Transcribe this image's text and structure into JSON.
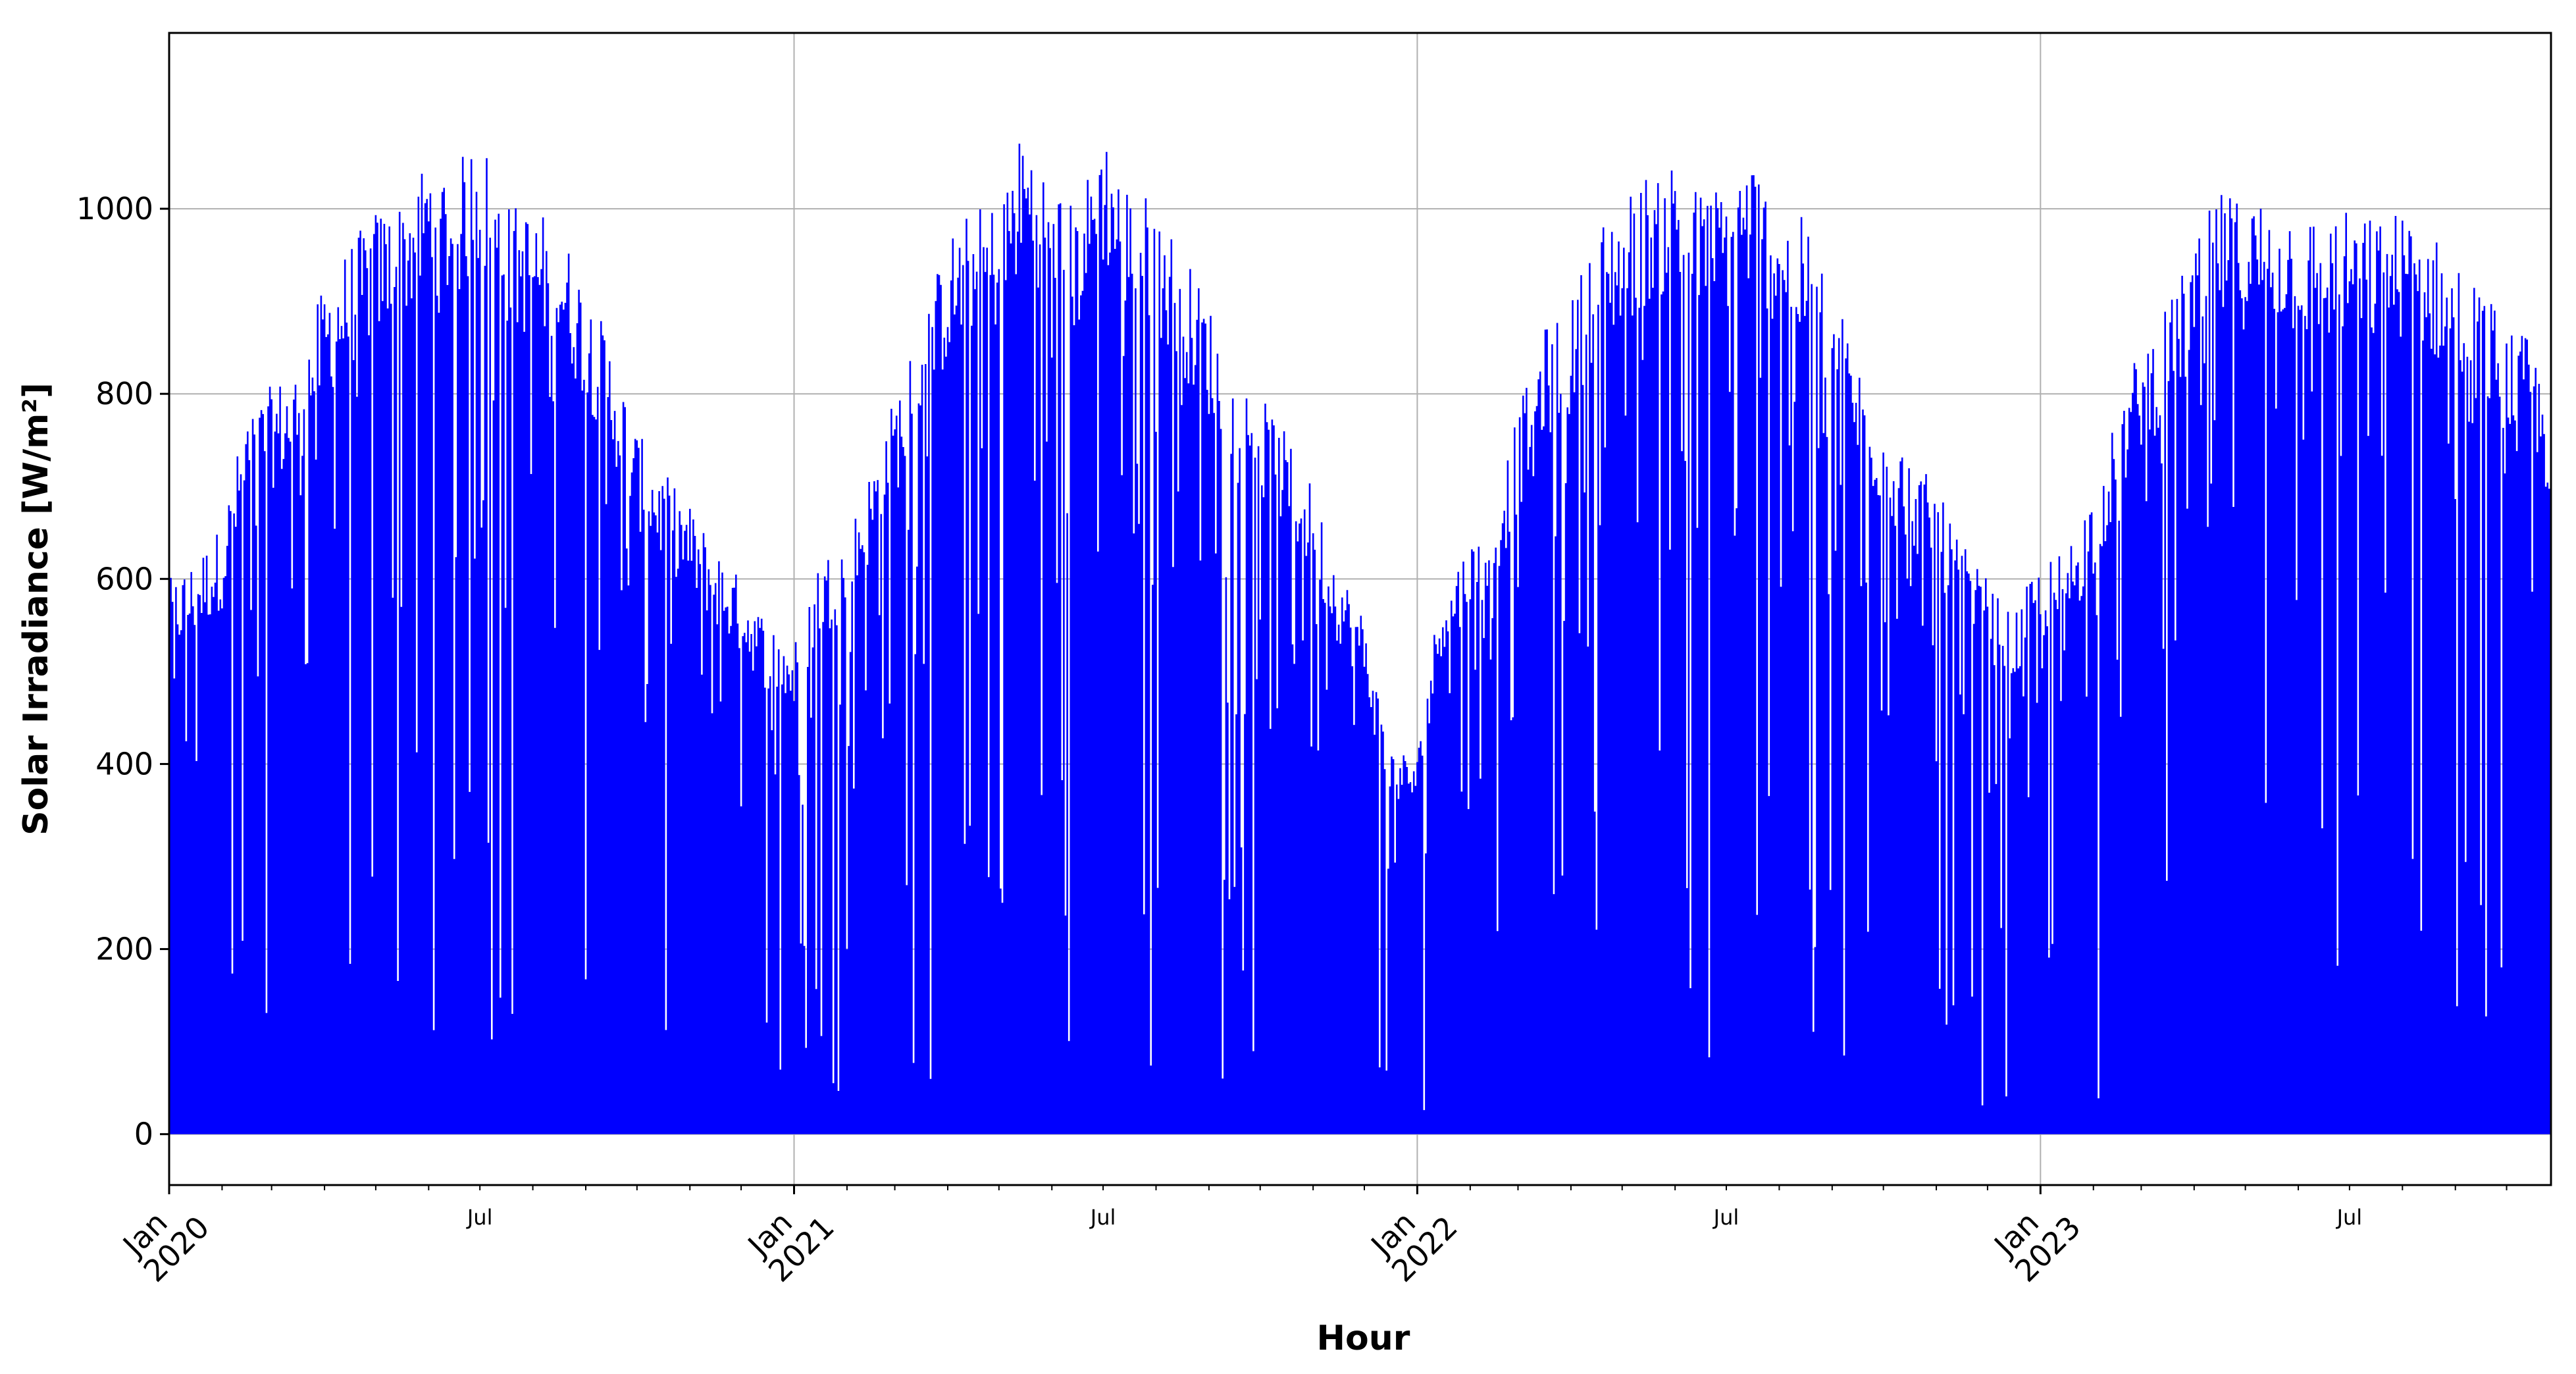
{
  "chart_data": {
    "type": "area",
    "title": "",
    "xlabel": "Hour",
    "ylabel": "Solar Irradiance [W/m²]",
    "ylim": [
      -55,
      1190
    ],
    "xlim": [
      "2020-01-01",
      "2023-10-27"
    ],
    "grid": true,
    "series_color": "#0000ff",
    "yticks": [
      0,
      200,
      400,
      600,
      800,
      1000
    ],
    "ytick_labels": [
      "0",
      "200",
      "400",
      "600",
      "800",
      "1000"
    ],
    "xticks_major": [
      {
        "date": "2020-01-01",
        "line1": "Jan",
        "line2": "2020"
      },
      {
        "date": "2021-01-01",
        "line1": "Jan",
        "line2": "2021"
      },
      {
        "date": "2022-01-01",
        "line1": "Jan",
        "line2": "2022"
      },
      {
        "date": "2023-01-01",
        "line1": "Jan",
        "line2": "2023"
      }
    ],
    "xticks_minor": [
      {
        "date": "2020-07-01",
        "label": "Jul"
      },
      {
        "date": "2021-07-01",
        "label": "Jul"
      },
      {
        "date": "2022-07-01",
        "label": "Jul"
      },
      {
        "date": "2023-07-01",
        "label": "Jul"
      }
    ],
    "series": [
      {
        "x": [
          "2020-01-01",
          "2020-01-15",
          "2020-02-01",
          "2020-02-15",
          "2020-03-01",
          "2020-03-15",
          "2020-04-01",
          "2020-04-15",
          "2020-05-01",
          "2020-05-15",
          "2020-06-01",
          "2020-06-15",
          "2020-07-01",
          "2020-07-15",
          "2020-08-01",
          "2020-08-15",
          "2020-09-01",
          "2020-09-15",
          "2020-10-01",
          "2020-10-15",
          "2020-11-01",
          "2020-11-15",
          "2020-12-01",
          "2020-12-15",
          "2021-01-01",
          "2021-01-15",
          "2021-02-01",
          "2021-02-15",
          "2021-03-01",
          "2021-03-15",
          "2021-04-01",
          "2021-04-15",
          "2021-05-01",
          "2021-05-15",
          "2021-06-01",
          "2021-06-15",
          "2021-07-01",
          "2021-07-15",
          "2021-08-01",
          "2021-08-15",
          "2021-09-01",
          "2021-09-15",
          "2021-10-01",
          "2021-10-15",
          "2021-11-01",
          "2021-11-15",
          "2021-12-01",
          "2021-12-15",
          "2022-01-01",
          "2022-01-15",
          "2022-02-01",
          "2022-02-15",
          "2022-03-01",
          "2022-03-15",
          "2022-04-01",
          "2022-04-15",
          "2022-05-01",
          "2022-05-15",
          "2022-06-01",
          "2022-06-15",
          "2022-07-01",
          "2022-07-15",
          "2022-08-01",
          "2022-08-15",
          "2022-09-01",
          "2022-09-15",
          "2022-10-01",
          "2022-10-15",
          "2022-11-01",
          "2022-11-15",
          "2022-12-01",
          "2022-12-15",
          "2023-01-01",
          "2023-01-15",
          "2023-02-01",
          "2023-02-15",
          "2023-03-01",
          "2023-03-15",
          "2023-04-01",
          "2023-04-15",
          "2023-05-01",
          "2023-05-15",
          "2023-06-01",
          "2023-06-15",
          "2023-07-01",
          "2023-07-15",
          "2023-08-01",
          "2023-08-15",
          "2023-09-01",
          "2023-09-15",
          "2023-10-01",
          "2023-10-15",
          "2023-10-27"
        ],
        "values": [
          600,
          620,
          660,
          780,
          810,
          830,
          920,
          960,
          1000,
          1010,
          1060,
          1040,
          1090,
          1010,
          1000,
          990,
          920,
          860,
          760,
          720,
          680,
          640,
          600,
          560,
          530,
          620,
          650,
          720,
          800,
          870,
          970,
          1000,
          1010,
          1090,
          1040,
          1000,
          1090,
          1030,
          1010,
          960,
          900,
          820,
          800,
          760,
          700,
          620,
          560,
          420,
          410,
          600,
          640,
          690,
          780,
          870,
          900,
          980,
          1010,
          1040,
          1060,
          1020,
          1030,
          1060,
          1010,
          990,
          920,
          840,
          780,
          740,
          700,
          640,
          600,
          560,
          620,
          630,
          700,
          780,
          860,
          890,
          960,
          1020,
          1010,
          1020,
          1000,
          990,
          1000,
          990,
          1000,
          980,
          950,
          920,
          880,
          860,
          790
        ]
      }
    ]
  }
}
